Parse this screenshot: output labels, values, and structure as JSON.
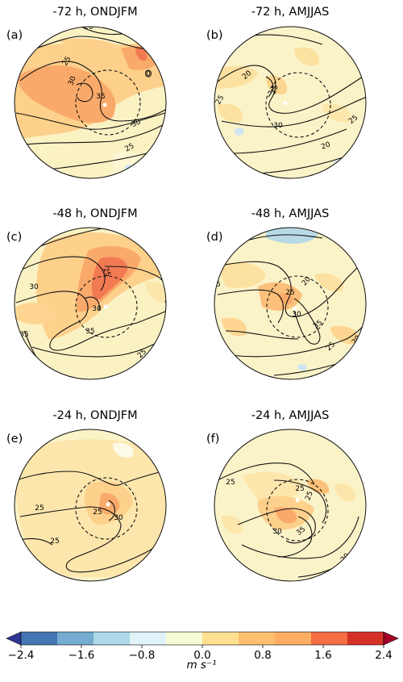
{
  "panels": [
    {
      "label": "(a)",
      "title": "-72 h, ONDJFM",
      "contour_labels": [
        "20",
        "25",
        "30",
        "35",
        "0",
        "25",
        "30"
      ]
    },
    {
      "label": "(b)",
      "title": "-72 h, AMJJAS",
      "contour_labels": [
        "20",
        "25",
        "25",
        "30",
        "25",
        "20"
      ]
    },
    {
      "label": "(c)",
      "title": "-48 h, ONDJFM",
      "contour_labels": [
        "20",
        "25",
        "30",
        "30",
        "35",
        "35",
        "25"
      ]
    },
    {
      "label": "(d)",
      "title": "-48 h, AMJJAS",
      "contour_labels": [
        "20",
        "25",
        "25",
        "30",
        "35",
        "25",
        "20"
      ]
    },
    {
      "label": "(e)",
      "title": "-24 h, ONDJFM",
      "contour_labels": [
        "25",
        "25",
        "30",
        "25",
        "25"
      ]
    },
    {
      "label": "(f)",
      "title": "-24 h, AMJJAS",
      "contour_labels": [
        "25",
        "25",
        "25",
        "30",
        "35",
        "20"
      ]
    }
  ],
  "colorbar": {
    "ticks": [
      "−2.4",
      "−1.6",
      "−0.8",
      "0.0",
      "0.8",
      "1.6",
      "2.4"
    ],
    "unit": "m s⁻¹",
    "colors": [
      "#313695",
      "#4575b4",
      "#74add1",
      "#abd9e9",
      "#e0f3f8",
      "#f7fcd6",
      "#fee090",
      "#fdc06e",
      "#fdae61",
      "#f46d43",
      "#d73027",
      "#a50026"
    ]
  }
}
